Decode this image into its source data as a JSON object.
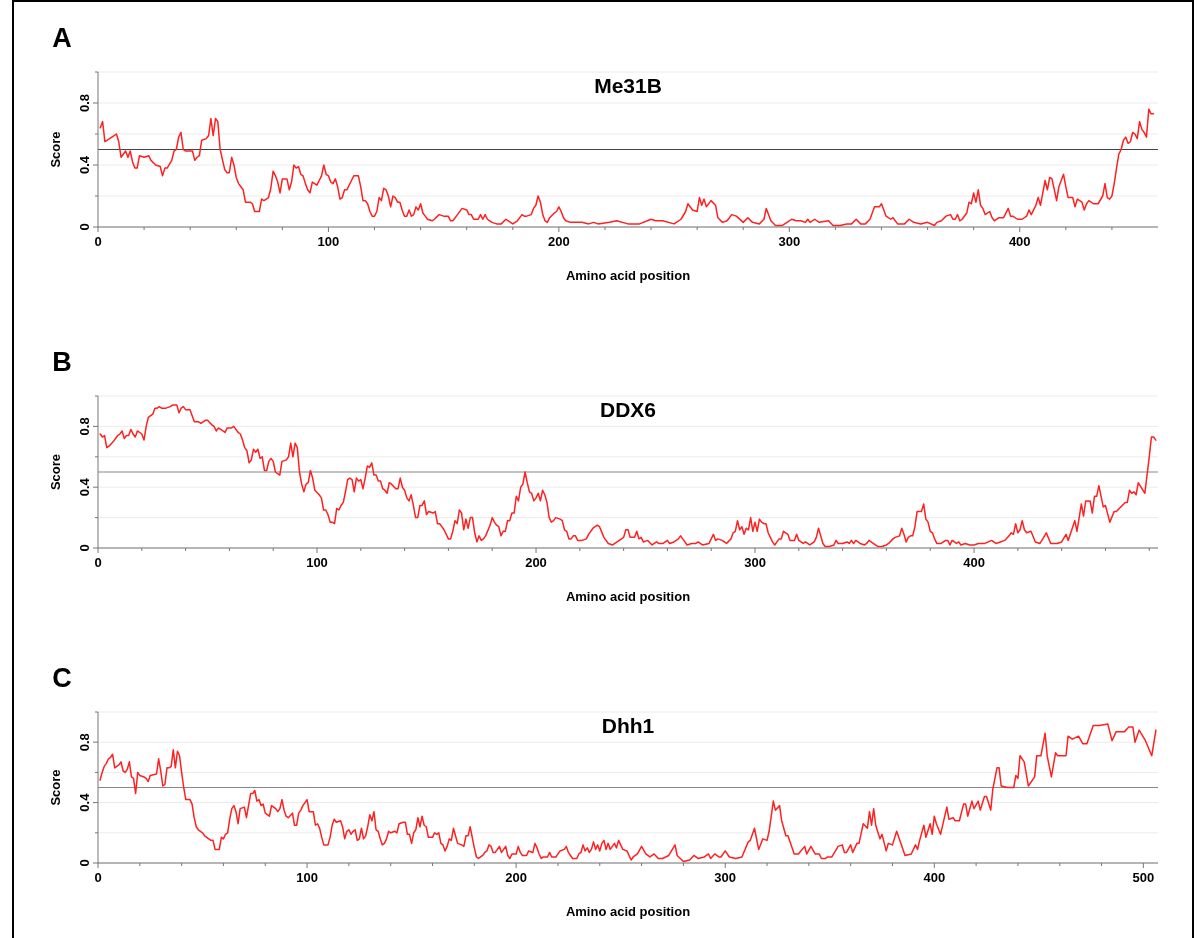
{
  "chart_data": [
    {
      "type": "line",
      "title": "Me31B",
      "xlabel": "Amino acid position",
      "ylabel": "Score",
      "annotations": [
        "A"
      ],
      "color": "#ff2020",
      "x": [
        1,
        2,
        3,
        5,
        7,
        8,
        9,
        10,
        12,
        13,
        14,
        15,
        16,
        17,
        18,
        20,
        22,
        23,
        25,
        27,
        28,
        29,
        30,
        32,
        33,
        34,
        35,
        36,
        37,
        38,
        41,
        42,
        43,
        44,
        45,
        47,
        48,
        49,
        50,
        51,
        52,
        53,
        55,
        56,
        57,
        58,
        59,
        60,
        61,
        62,
        63,
        64,
        66,
        67,
        68,
        70,
        71,
        72,
        74,
        75,
        76,
        77,
        78,
        79,
        80,
        82,
        83,
        84,
        85,
        86,
        87,
        88,
        89,
        90,
        91,
        92,
        93,
        95,
        96,
        97,
        98,
        99,
        100,
        101,
        102,
        103,
        104,
        105,
        106,
        107,
        108,
        110,
        111,
        113,
        114,
        115,
        116,
        117,
        118,
        119,
        120,
        121,
        122,
        123,
        124,
        125,
        126,
        127,
        128,
        129,
        130,
        131,
        132,
        133,
        134,
        135,
        136,
        137,
        138,
        139,
        140,
        141,
        142,
        143,
        145,
        146,
        148,
        150,
        152,
        153,
        154,
        156,
        158,
        160,
        161,
        162,
        163,
        165,
        166,
        167,
        168,
        169,
        170,
        171,
        173,
        175,
        177,
        179,
        180,
        182,
        184,
        185,
        186,
        188,
        189,
        190,
        191,
        192,
        193,
        194,
        195,
        196,
        198,
        199,
        200,
        201,
        202,
        203,
        205,
        207,
        210,
        213,
        215,
        217,
        222,
        225,
        230,
        235,
        240,
        242,
        245,
        250,
        253,
        255,
        256,
        258,
        260,
        261,
        262,
        263,
        264,
        266,
        268,
        269,
        271,
        273,
        275,
        277,
        280,
        282,
        284,
        287,
        289,
        290,
        292,
        294,
        297,
        299,
        301,
        303,
        305,
        307,
        308,
        309,
        311,
        313,
        317,
        319,
        322,
        325,
        327,
        329,
        331,
        333,
        335,
        337,
        339,
        340,
        341,
        342,
        344,
        345,
        347,
        350,
        352,
        354,
        357,
        360,
        363,
        364,
        366,
        368,
        370,
        371,
        372,
        373,
        374,
        375,
        377,
        378,
        379,
        380,
        381,
        382,
        383,
        384,
        385,
        387,
        388,
        389,
        391,
        393,
        395,
        396,
        397,
        399,
        401,
        403,
        404,
        405,
        407,
        408,
        409,
        411,
        412,
        413,
        414,
        416,
        417,
        419,
        420,
        421,
        423,
        424,
        425,
        427,
        428,
        429,
        430,
        432,
        434,
        436,
        437,
        438,
        439,
        440,
        441,
        442,
        443,
        444,
        445,
        446,
        447,
        448,
        449,
        450,
        451,
        452,
        453,
        454,
        455,
        456,
        457,
        458
      ],
      "values": [
        0.64,
        0.68,
        0.55,
        0.57,
        0.59,
        0.6,
        0.55,
        0.45,
        0.49,
        0.45,
        0.49,
        0.42,
        0.38,
        0.38,
        0.46,
        0.45,
        0.46,
        0.43,
        0.4,
        0.39,
        0.33,
        0.38,
        0.38,
        0.43,
        0.49,
        0.5,
        0.58,
        0.61,
        0.5,
        0.49,
        0.49,
        0.43,
        0.45,
        0.46,
        0.56,
        0.57,
        0.59,
        0.7,
        0.59,
        0.7,
        0.68,
        0.5,
        0.37,
        0.35,
        0.35,
        0.45,
        0.4,
        0.32,
        0.28,
        0.26,
        0.24,
        0.16,
        0.16,
        0.15,
        0.1,
        0.1,
        0.18,
        0.17,
        0.19,
        0.25,
        0.36,
        0.33,
        0.29,
        0.22,
        0.31,
        0.31,
        0.24,
        0.29,
        0.4,
        0.38,
        0.39,
        0.34,
        0.33,
        0.28,
        0.24,
        0.22,
        0.29,
        0.27,
        0.3,
        0.33,
        0.4,
        0.34,
        0.33,
        0.29,
        0.28,
        0.31,
        0.26,
        0.18,
        0.19,
        0.24,
        0.24,
        0.3,
        0.33,
        0.33,
        0.26,
        0.17,
        0.17,
        0.15,
        0.1,
        0.07,
        0.07,
        0.1,
        0.19,
        0.17,
        0.25,
        0.24,
        0.2,
        0.13,
        0.2,
        0.19,
        0.16,
        0.16,
        0.11,
        0.07,
        0.07,
        0.11,
        0.07,
        0.08,
        0.13,
        0.11,
        0.15,
        0.09,
        0.07,
        0.05,
        0.04,
        0.05,
        0.08,
        0.07,
        0.07,
        0.04,
        0.04,
        0.08,
        0.12,
        0.11,
        0.08,
        0.08,
        0.05,
        0.05,
        0.08,
        0.05,
        0.08,
        0.05,
        0.04,
        0.03,
        0.02,
        0.02,
        0.05,
        0.03,
        0.02,
        0.04,
        0.08,
        0.07,
        0.07,
        0.08,
        0.12,
        0.14,
        0.2,
        0.16,
        0.08,
        0.04,
        0.03,
        0.06,
        0.09,
        0.1,
        0.13,
        0.1,
        0.06,
        0.04,
        0.03,
        0.03,
        0.03,
        0.02,
        0.03,
        0.02,
        0.03,
        0.04,
        0.02,
        0.02,
        0.05,
        0.04,
        0.04,
        0.02,
        0.05,
        0.1,
        0.15,
        0.11,
        0.1,
        0.19,
        0.14,
        0.18,
        0.13,
        0.17,
        0.14,
        0.06,
        0.03,
        0.04,
        0.08,
        0.07,
        0.03,
        0.06,
        0.03,
        0.02,
        0.05,
        0.12,
        0.04,
        0.01,
        0.01,
        0.03,
        0.05,
        0.04,
        0.04,
        0.03,
        0.05,
        0.03,
        0.05,
        0.03,
        0.04,
        0.01,
        0.01,
        0.02,
        0.02,
        0.05,
        0.02,
        0.02,
        0.05,
        0.13,
        0.13,
        0.15,
        0.11,
        0.07,
        0.05,
        0.06,
        0.02,
        0.02,
        0.05,
        0.03,
        0.02,
        0.03,
        0.01,
        0.03,
        0.04,
        0.07,
        0.08,
        0.05,
        0.05,
        0.08,
        0.04,
        0.05,
        0.09,
        0.16,
        0.15,
        0.22,
        0.16,
        0.24,
        0.14,
        0.12,
        0.08,
        0.1,
        0.06,
        0.04,
        0.06,
        0.06,
        0.12,
        0.07,
        0.07,
        0.05,
        0.05,
        0.07,
        0.11,
        0.08,
        0.14,
        0.19,
        0.14,
        0.3,
        0.24,
        0.32,
        0.31,
        0.17,
        0.26,
        0.34,
        0.26,
        0.19,
        0.19,
        0.13,
        0.18,
        0.16,
        0.11,
        0.15,
        0.17,
        0.15,
        0.15,
        0.2,
        0.28,
        0.19,
        0.18,
        0.2,
        0.28,
        0.38,
        0.47,
        0.5,
        0.56,
        0.58,
        0.54,
        0.55,
        0.61,
        0.6,
        0.57,
        0.68,
        0.63,
        0.61,
        0.58,
        0.76,
        0.73,
        0.73
      ],
      "xlim": [
        0,
        460
      ],
      "ylim": [
        0,
        1
      ],
      "xticks": [
        0,
        {
          "value": 20,
          "label": null
        },
        {
          "value": 40,
          "label": null
        },
        {
          "value": 60,
          "label": null
        },
        {
          "value": 80,
          "label": null
        },
        100,
        {
          "value": 120,
          "label": null
        },
        {
          "value": 140,
          "label": null
        },
        {
          "value": 160,
          "label": null
        },
        {
          "value": 180,
          "label": null
        },
        200,
        {
          "value": 220,
          "label": null
        },
        {
          "value": 240,
          "label": null
        },
        {
          "value": 260,
          "label": null
        },
        {
          "value": 280,
          "label": null
        },
        300,
        {
          "value": 320,
          "label": null
        },
        {
          "value": 340,
          "label": null
        },
        {
          "value": 360,
          "label": null
        },
        {
          "value": 380,
          "label": null
        },
        400,
        {
          "value": 420,
          "label": null
        },
        {
          "value": 440,
          "label": null
        }
      ],
      "yticks": [
        0,
        {
          "value": 0.2,
          "label": null
        },
        0.4,
        {
          "value": 0.6,
          "label": null
        },
        0.8,
        {
          "value": 1,
          "label": null
        }
      ],
      "grid": "y",
      "ref_lines": [
        {
          "axis": "y",
          "value": 0.5,
          "color": "#444444"
        }
      ]
    },
    {
      "type": "line",
      "title": "DDX6",
      "xlabel": "Amino acid position",
      "ylabel": "Score",
      "annotations": [
        "B"
      ],
      "color": "#ff2020",
      "x": [
        1,
        2,
        3,
        4,
        5,
        7,
        9,
        10,
        11,
        12,
        13,
        14,
        15,
        16,
        17,
        18,
        20,
        21,
        22,
        23,
        25,
        26,
        27,
        28,
        29,
        31,
        33,
        34,
        36,
        37,
        38,
        39,
        40,
        42,
        43,
        44,
        46,
        47,
        49,
        50,
        52,
        53,
        54,
        55,
        57,
        58,
        59,
        61,
        62,
        64,
        65,
        66,
        67,
        68,
        69,
        70,
        71,
        72,
        73,
        74,
        75,
        76,
        77,
        78,
        79,
        80,
        81,
        83,
        84,
        86,
        87,
        88,
        89,
        90,
        91,
        92,
        93,
        94,
        95,
        96,
        97,
        98,
        99,
        101,
        102,
        103,
        104,
        105,
        106,
        107,
        108,
        109,
        110,
        111,
        112,
        113,
        114,
        115,
        116,
        117,
        118,
        119,
        120,
        121,
        122,
        123,
        124,
        125,
        126,
        127,
        128,
        129,
        130,
        131,
        132,
        133,
        134,
        136,
        137,
        138,
        139,
        140,
        141,
        142,
        143,
        144,
        145,
        146,
        147,
        148,
        149,
        150,
        151,
        153,
        154,
        155,
        156,
        158,
        160,
        161,
        162,
        163,
        164,
        165,
        166,
        167,
        168,
        169,
        170,
        171,
        172,
        173,
        174,
        175,
        176,
        177,
        179,
        180,
        181,
        182,
        183,
        184,
        185,
        186,
        187,
        188,
        189,
        190,
        191,
        192,
        193,
        194,
        195,
        196,
        197,
        198,
        199,
        200,
        201,
        202,
        203,
        204,
        205,
        206,
        207,
        208,
        209,
        211,
        212,
        213,
        214,
        215,
        216,
        217,
        218,
        219,
        221,
        223,
        224,
        226,
        228,
        229,
        231,
        233,
        235,
        237,
        239,
        240,
        241,
        242,
        243,
        245,
        246,
        247,
        248,
        249,
        251,
        253,
        255,
        256,
        258,
        260,
        261,
        263,
        265,
        266,
        267,
        269,
        271,
        273,
        274,
        276,
        279,
        281,
        282,
        283,
        285,
        287,
        289,
        290,
        291,
        292,
        293,
        294,
        295,
        296,
        297,
        298,
        299,
        300,
        301,
        302,
        303,
        304,
        305,
        306,
        307,
        308,
        309,
        310,
        311,
        312,
        313,
        314,
        315,
        316,
        318,
        319,
        320,
        322,
        323,
        325,
        327,
        328,
        329,
        330,
        331,
        332,
        334,
        336,
        337,
        338,
        340,
        342,
        343,
        344,
        345,
        346,
        348,
        350,
        351,
        352,
        354,
        356,
        358,
        360,
        361,
        363,
        364,
        366,
        367,
        368,
        369,
        370,
        371,
        372,
        373,
        374,
        376,
        377,
        378,
        379,
        380,
        381,
        382,
        383,
        385,
        387,
        388,
        389,
        390,
        392,
        393,
        394,
        396,
        398,
        400,
        402,
        405,
        408,
        410,
        412,
        414,
        416,
        417,
        418,
        419,
        420,
        421,
        422,
        423,
        424,
        426,
        428,
        430,
        431,
        433,
        435,
        438,
        440,
        442,
        443,
        446,
        447,
        449,
        450,
        451,
        453,
        454,
        455,
        456,
        457,
        459,
        460,
        462,
        464,
        465,
        469,
        470,
        471,
        472,
        473,
        474,
        475,
        478,
        480,
        481,
        482,
        483
      ],
      "values": [
        0.75,
        0.73,
        0.74,
        0.66,
        0.67,
        0.7,
        0.74,
        0.75,
        0.77,
        0.72,
        0.74,
        0.74,
        0.78,
        0.75,
        0.73,
        0.77,
        0.75,
        0.71,
        0.8,
        0.86,
        0.88,
        0.92,
        0.92,
        0.93,
        0.92,
        0.92,
        0.93,
        0.94,
        0.94,
        0.89,
        0.92,
        0.93,
        0.91,
        0.91,
        0.87,
        0.83,
        0.83,
        0.82,
        0.84,
        0.84,
        0.81,
        0.8,
        0.77,
        0.79,
        0.77,
        0.76,
        0.79,
        0.79,
        0.8,
        0.76,
        0.75,
        0.71,
        0.66,
        0.64,
        0.56,
        0.58,
        0.65,
        0.63,
        0.65,
        0.59,
        0.6,
        0.51,
        0.51,
        0.57,
        0.59,
        0.57,
        0.5,
        0.48,
        0.57,
        0.58,
        0.6,
        0.69,
        0.6,
        0.69,
        0.66,
        0.5,
        0.42,
        0.37,
        0.42,
        0.43,
        0.51,
        0.46,
        0.38,
        0.35,
        0.33,
        0.25,
        0.25,
        0.22,
        0.17,
        0.17,
        0.16,
        0.26,
        0.25,
        0.28,
        0.3,
        0.37,
        0.45,
        0.46,
        0.45,
        0.37,
        0.46,
        0.44,
        0.45,
        0.39,
        0.46,
        0.54,
        0.53,
        0.56,
        0.48,
        0.48,
        0.44,
        0.44,
        0.39,
        0.38,
        0.36,
        0.43,
        0.42,
        0.39,
        0.39,
        0.46,
        0.4,
        0.38,
        0.33,
        0.31,
        0.35,
        0.28,
        0.2,
        0.2,
        0.28,
        0.28,
        0.31,
        0.22,
        0.24,
        0.23,
        0.24,
        0.16,
        0.16,
        0.12,
        0.06,
        0.06,
        0.11,
        0.18,
        0.16,
        0.25,
        0.23,
        0.12,
        0.19,
        0.13,
        0.2,
        0.2,
        0.1,
        0.04,
        0.08,
        0.05,
        0.06,
        0.08,
        0.15,
        0.2,
        0.17,
        0.15,
        0.14,
        0.08,
        0.11,
        0.11,
        0.18,
        0.18,
        0.23,
        0.23,
        0.34,
        0.31,
        0.4,
        0.42,
        0.5,
        0.43,
        0.37,
        0.36,
        0.31,
        0.33,
        0.36,
        0.31,
        0.38,
        0.35,
        0.3,
        0.2,
        0.17,
        0.18,
        0.2,
        0.19,
        0.18,
        0.12,
        0.11,
        0.06,
        0.06,
        0.08,
        0.08,
        0.05,
        0.05,
        0.06,
        0.09,
        0.13,
        0.15,
        0.14,
        0.07,
        0.03,
        0.02,
        0.04,
        0.06,
        0.07,
        0.12,
        0.12,
        0.07,
        0.07,
        0.11,
        0.06,
        0.07,
        0.04,
        0.05,
        0.02,
        0.04,
        0.03,
        0.03,
        0.05,
        0.03,
        0.04,
        0.06,
        0.08,
        0.06,
        0.02,
        0.03,
        0.03,
        0.04,
        0.02,
        0.03,
        0.09,
        0.05,
        0.06,
        0.05,
        0.03,
        0.06,
        0.1,
        0.11,
        0.18,
        0.12,
        0.14,
        0.09,
        0.13,
        0.12,
        0.2,
        0.11,
        0.17,
        0.11,
        0.19,
        0.17,
        0.16,
        0.16,
        0.1,
        0.07,
        0.04,
        0.02,
        0.04,
        0.06,
        0.06,
        0.11,
        0.1,
        0.09,
        0.05,
        0.05,
        0.09,
        0.05,
        0.03,
        0.04,
        0.02,
        0.04,
        0.07,
        0.13,
        0.08,
        0.03,
        0.01,
        0.01,
        0.02,
        0.05,
        0.03,
        0.03,
        0.04,
        0.03,
        0.05,
        0.03,
        0.05,
        0.03,
        0.02,
        0.03,
        0.05,
        0.03,
        0.01,
        0.01,
        0.02,
        0.03,
        0.06,
        0.07,
        0.08,
        0.13,
        0.09,
        0.04,
        0.07,
        0.08,
        0.08,
        0.14,
        0.24,
        0.24,
        0.29,
        0.19,
        0.17,
        0.11,
        0.1,
        0.06,
        0.03,
        0.03,
        0.05,
        0.05,
        0.02,
        0.05,
        0.03,
        0.04,
        0.02,
        0.03,
        0.02,
        0.02,
        0.03,
        0.03,
        0.05,
        0.03,
        0.04,
        0.05,
        0.08,
        0.1,
        0.09,
        0.16,
        0.1,
        0.12,
        0.18,
        0.12,
        0.1,
        0.11,
        0.04,
        0.03,
        0.05,
        0.1,
        0.03,
        0.03,
        0.04,
        0.09,
        0.05,
        0.18,
        0.11,
        0.29,
        0.21,
        0.31,
        0.31,
        0.23,
        0.34,
        0.34,
        0.41,
        0.27,
        0.28,
        0.17,
        0.24,
        0.24,
        0.3,
        0.3,
        0.38,
        0.36,
        0.37,
        0.35,
        0.43,
        0.36,
        0.6,
        0.73,
        0.73,
        0.71
      ],
      "xlim": [
        0,
        484
      ],
      "ylim": [
        0,
        1
      ],
      "xticks": [
        0,
        {
          "value": 20,
          "label": null
        },
        {
          "value": 40,
          "label": null
        },
        {
          "value": 60,
          "label": null
        },
        {
          "value": 80,
          "label": null
        },
        100,
        {
          "value": 120,
          "label": null
        },
        {
          "value": 140,
          "label": null
        },
        {
          "value": 160,
          "label": null
        },
        {
          "value": 180,
          "label": null
        },
        200,
        {
          "value": 220,
          "label": null
        },
        {
          "value": 240,
          "label": null
        },
        {
          "value": 260,
          "label": null
        },
        {
          "value": 280,
          "label": null
        },
        300,
        {
          "value": 320,
          "label": null
        },
        {
          "value": 340,
          "label": null
        },
        {
          "value": 360,
          "label": null
        },
        {
          "value": 380,
          "label": null
        },
        400,
        {
          "value": 420,
          "label": null
        },
        {
          "value": 440,
          "label": null
        },
        {
          "value": 460,
          "label": null
        },
        {
          "value": 480,
          "label": null
        }
      ],
      "yticks": [
        0,
        {
          "value": 0.2,
          "label": null
        },
        0.4,
        {
          "value": 0.6,
          "label": null
        },
        0.8,
        {
          "value": 1,
          "label": null
        }
      ],
      "grid": "y",
      "ref_lines": [
        {
          "axis": "y",
          "value": 0.5,
          "color": "#888888"
        }
      ]
    },
    {
      "type": "line",
      "title": "Dhh1",
      "xlabel": "Amino acid position",
      "ylabel": "Score",
      "annotations": [
        "C"
      ],
      "color": "#ff2020",
      "x": [
        1,
        2,
        3,
        4,
        5,
        6,
        7,
        8,
        10,
        11,
        12,
        13,
        14,
        15,
        16,
        17,
        18,
        19,
        20,
        22,
        23,
        24,
        25,
        28,
        29,
        30,
        31,
        32,
        33,
        34,
        35,
        36,
        37,
        38,
        39,
        40,
        41,
        42,
        44,
        45,
        46,
        47,
        48,
        50,
        51,
        52,
        54,
        55,
        56,
        58,
        59,
        60,
        61,
        62,
        63,
        64,
        65,
        66,
        67,
        68,
        70,
        71,
        73,
        74,
        75,
        76,
        77,
        78,
        79,
        80,
        81,
        82,
        83,
        85,
        86,
        87,
        88,
        89,
        90,
        91,
        93,
        94,
        95,
        96,
        97,
        98,
        99,
        100,
        101,
        103,
        104,
        105,
        106,
        107,
        108,
        110,
        111,
        112,
        113,
        114,
        116,
        117,
        118,
        119,
        120,
        121,
        122,
        123,
        124,
        125,
        126,
        127,
        128,
        129,
        130,
        131,
        132,
        133,
        134,
        135,
        136,
        137,
        138,
        139,
        140,
        142,
        143,
        144,
        146,
        147,
        148,
        149,
        150,
        151,
        152,
        153,
        154,
        155,
        156,
        157,
        158,
        160,
        161,
        162,
        163,
        164,
        165,
        166,
        167,
        168,
        169,
        170,
        171,
        172,
        174,
        175,
        176,
        177,
        178,
        179,
        180,
        181,
        182,
        184,
        185,
        186,
        187,
        188,
        189,
        190,
        192,
        193,
        195,
        196,
        197,
        198,
        200,
        201,
        202,
        203,
        205,
        206,
        208,
        209,
        210,
        211,
        212,
        213,
        215,
        216,
        217,
        219,
        220,
        221,
        223,
        224,
        225,
        226,
        227,
        229,
        230,
        231,
        232,
        233,
        234,
        235,
        236,
        237,
        238,
        239,
        240,
        241,
        242,
        243,
        244,
        245,
        247,
        248,
        249,
        251,
        253,
        255,
        256,
        258,
        260,
        262,
        264,
        266,
        268,
        270,
        273,
        276,
        277,
        280,
        283,
        285,
        287,
        290,
        292,
        293,
        295,
        297,
        298,
        300,
        302,
        305,
        308,
        311,
        312,
        314,
        316,
        318,
        320,
        321,
        323,
        324,
        326,
        327,
        329,
        330,
        333,
        335,
        338,
        339,
        341,
        343,
        345,
        346,
        348,
        349,
        351,
        354,
        356,
        357,
        358,
        360,
        361,
        363,
        364,
        366,
        368,
        369,
        370,
        371,
        372,
        374,
        375,
        377,
        378,
        380,
        382,
        384,
        386,
        389,
        391,
        392,
        393,
        395,
        396,
        398,
        399,
        400,
        401,
        403,
        405,
        406,
        407,
        409,
        410,
        412,
        414,
        415,
        416,
        418,
        419,
        421,
        422,
        424,
        425,
        427,
        428,
        430,
        431,
        432,
        435,
        438,
        439,
        440,
        441,
        443,
        445,
        448,
        449,
        451,
        453,
        454,
        456,
        458,
        459,
        463,
        464,
        466,
        469,
        471,
        473,
        476,
        479,
        483,
        485,
        487,
        491,
        493,
        495,
        496,
        498,
        501,
        504,
        506
      ],
      "values": [
        0.55,
        0.6,
        0.64,
        0.66,
        0.69,
        0.7,
        0.72,
        0.63,
        0.65,
        0.67,
        0.61,
        0.6,
        0.62,
        0.67,
        0.57,
        0.56,
        0.46,
        0.6,
        0.58,
        0.57,
        0.56,
        0.54,
        0.58,
        0.59,
        0.69,
        0.61,
        0.51,
        0.52,
        0.63,
        0.63,
        0.64,
        0.75,
        0.63,
        0.74,
        0.71,
        0.6,
        0.5,
        0.42,
        0.42,
        0.39,
        0.3,
        0.24,
        0.22,
        0.2,
        0.18,
        0.17,
        0.15,
        0.15,
        0.09,
        0.09,
        0.17,
        0.16,
        0.19,
        0.2,
        0.29,
        0.36,
        0.38,
        0.34,
        0.26,
        0.36,
        0.37,
        0.3,
        0.46,
        0.46,
        0.48,
        0.41,
        0.42,
        0.38,
        0.39,
        0.33,
        0.32,
        0.31,
        0.38,
        0.36,
        0.34,
        0.36,
        0.42,
        0.35,
        0.31,
        0.3,
        0.33,
        0.25,
        0.25,
        0.33,
        0.35,
        0.38,
        0.4,
        0.42,
        0.34,
        0.34,
        0.25,
        0.26,
        0.23,
        0.17,
        0.12,
        0.12,
        0.17,
        0.25,
        0.29,
        0.27,
        0.28,
        0.24,
        0.16,
        0.21,
        0.22,
        0.19,
        0.21,
        0.22,
        0.15,
        0.16,
        0.23,
        0.16,
        0.18,
        0.24,
        0.32,
        0.28,
        0.34,
        0.22,
        0.21,
        0.16,
        0.12,
        0.13,
        0.16,
        0.21,
        0.2,
        0.21,
        0.2,
        0.26,
        0.27,
        0.27,
        0.19,
        0.19,
        0.13,
        0.2,
        0.22,
        0.3,
        0.24,
        0.31,
        0.25,
        0.24,
        0.17,
        0.17,
        0.2,
        0.19,
        0.2,
        0.13,
        0.12,
        0.08,
        0.11,
        0.16,
        0.15,
        0.23,
        0.18,
        0.13,
        0.12,
        0.11,
        0.18,
        0.18,
        0.24,
        0.17,
        0.1,
        0.04,
        0.03,
        0.05,
        0.07,
        0.08,
        0.12,
        0.11,
        0.07,
        0.07,
        0.11,
        0.07,
        0.11,
        0.05,
        0.03,
        0.06,
        0.06,
        0.11,
        0.07,
        0.05,
        0.05,
        0.08,
        0.07,
        0.13,
        0.1,
        0.06,
        0.03,
        0.04,
        0.04,
        0.07,
        0.04,
        0.04,
        0.06,
        0.08,
        0.09,
        0.11,
        0.07,
        0.05,
        0.03,
        0.03,
        0.06,
        0.07,
        0.12,
        0.08,
        0.1,
        0.07,
        0.09,
        0.14,
        0.09,
        0.12,
        0.08,
        0.13,
        0.15,
        0.09,
        0.13,
        0.09,
        0.13,
        0.1,
        0.15,
        0.09,
        0.08,
        0.02,
        0.04,
        0.06,
        0.11,
        0.06,
        0.04,
        0.06,
        0.03,
        0.03,
        0.05,
        0.12,
        0.05,
        0.01,
        0.02,
        0.05,
        0.03,
        0.04,
        0.06,
        0.03,
        0.06,
        0.04,
        0.04,
        0.08,
        0.04,
        0.03,
        0.04,
        0.14,
        0.15,
        0.23,
        0.09,
        0.16,
        0.15,
        0.21,
        0.41,
        0.35,
        0.38,
        0.28,
        0.18,
        0.18,
        0.06,
        0.06,
        0.11,
        0.06,
        0.11,
        0.06,
        0.06,
        0.03,
        0.03,
        0.04,
        0.04,
        0.11,
        0.12,
        0.07,
        0.07,
        0.12,
        0.07,
        0.13,
        0.13,
        0.26,
        0.23,
        0.34,
        0.25,
        0.36,
        0.25,
        0.16,
        0.19,
        0.08,
        0.13,
        0.12,
        0.21,
        0.13,
        0.05,
        0.06,
        0.12,
        0.09,
        0.15,
        0.25,
        0.17,
        0.26,
        0.19,
        0.31,
        0.26,
        0.19,
        0.31,
        0.37,
        0.29,
        0.3,
        0.28,
        0.28,
        0.39,
        0.39,
        0.31,
        0.41,
        0.36,
        0.41,
        0.35,
        0.44,
        0.44,
        0.35,
        0.49,
        0.63,
        0.63,
        0.51,
        0.5,
        0.5,
        0.58,
        0.56,
        0.71,
        0.67,
        0.51,
        0.57,
        0.71,
        0.71,
        0.86,
        0.71,
        0.57,
        0.73,
        0.71,
        0.71,
        0.84,
        0.82,
        0.84,
        0.79,
        0.79,
        0.91,
        0.91,
        0.92,
        0.81,
        0.87,
        0.87,
        0.9,
        0.9,
        0.8,
        0.88,
        0.81,
        0.71,
        0.88
      ],
      "xlim": [
        0,
        507
      ],
      "ylim": [
        0,
        1
      ],
      "xticks": [
        0,
        {
          "value": 20,
          "label": null
        },
        {
          "value": 40,
          "label": null
        },
        {
          "value": 60,
          "label": null
        },
        {
          "value": 80,
          "label": null
        },
        100,
        {
          "value": 120,
          "label": null
        },
        {
          "value": 140,
          "label": null
        },
        {
          "value": 160,
          "label": null
        },
        {
          "value": 180,
          "label": null
        },
        200,
        {
          "value": 220,
          "label": null
        },
        {
          "value": 240,
          "label": null
        },
        {
          "value": 260,
          "label": null
        },
        {
          "value": 280,
          "label": null
        },
        300,
        {
          "value": 320,
          "label": null
        },
        {
          "value": 340,
          "label": null
        },
        {
          "value": 360,
          "label": null
        },
        {
          "value": 380,
          "label": null
        },
        400,
        {
          "value": 420,
          "label": null
        },
        {
          "value": 440,
          "label": null
        },
        {
          "value": 460,
          "label": null
        },
        {
          "value": 480,
          "label": null
        },
        500
      ],
      "yticks": [
        0,
        {
          "value": 0.2,
          "label": null
        },
        0.4,
        {
          "value": 0.6,
          "label": null
        },
        0.8,
        {
          "value": 1,
          "label": null
        }
      ],
      "grid": "y",
      "ref_lines": [
        {
          "axis": "y",
          "value": 0.5,
          "color": "#888888"
        }
      ]
    }
  ]
}
